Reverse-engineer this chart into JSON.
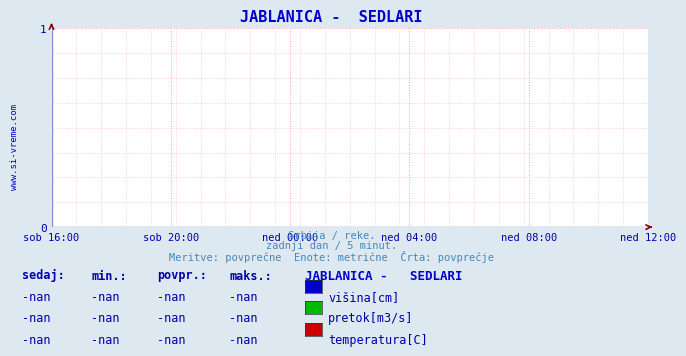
{
  "title": "JABLANICA -  SEDLARI",
  "title_color": "#0000cc",
  "title_fontsize": 11,
  "bg_color": "#dde8f0",
  "plot_bg_color": "#ffffff",
  "grid_color": "#ff9999",
  "grid_style": ":",
  "axis_color": "#0000aa",
  "yticks": [
    0,
    1
  ],
  "ylim": [
    0,
    1
  ],
  "xlim": [
    0,
    1
  ],
  "xtick_labels": [
    "sob 16:00",
    "sob 20:00",
    "ned 00:00",
    "ned 04:00",
    "ned 08:00",
    "ned 12:00"
  ],
  "xtick_positions": [
    0.0,
    0.2,
    0.4,
    0.6,
    0.8,
    1.0
  ],
  "watermark": "www.si-vreme.com",
  "watermark_color": "#0000cc",
  "sub_text1": "Srbija / reke.",
  "sub_text2": "zadnji dan / 5 minut.",
  "sub_text3": "Meritve: povprečne  Enote: metrične  Črta: povprečje",
  "sub_text_color": "#4488bb",
  "table_header": [
    "sedaj:",
    "min.:",
    "povpr.:",
    "maks.:"
  ],
  "table_station": "JABLANICA -   SEDLARI",
  "table_rows": [
    [
      "-nan",
      "-nan",
      "-nan",
      "-nan",
      "#0000cc",
      "višina[cm]"
    ],
    [
      "-nan",
      "-nan",
      "-nan",
      "-nan",
      "#00bb00",
      "pretok[m3/s]"
    ],
    [
      "-nan",
      "-nan",
      "-nan",
      "-nan",
      "#cc0000",
      "temperatura[C]"
    ]
  ],
  "table_color": "#0000aa",
  "table_fontsize": 8.5,
  "legend_title_color": "#0000cc",
  "legend_title_fontsize": 9,
  "arrow_color": "#880000",
  "hline_color": "#8888cc",
  "vline_color": "#8888cc"
}
